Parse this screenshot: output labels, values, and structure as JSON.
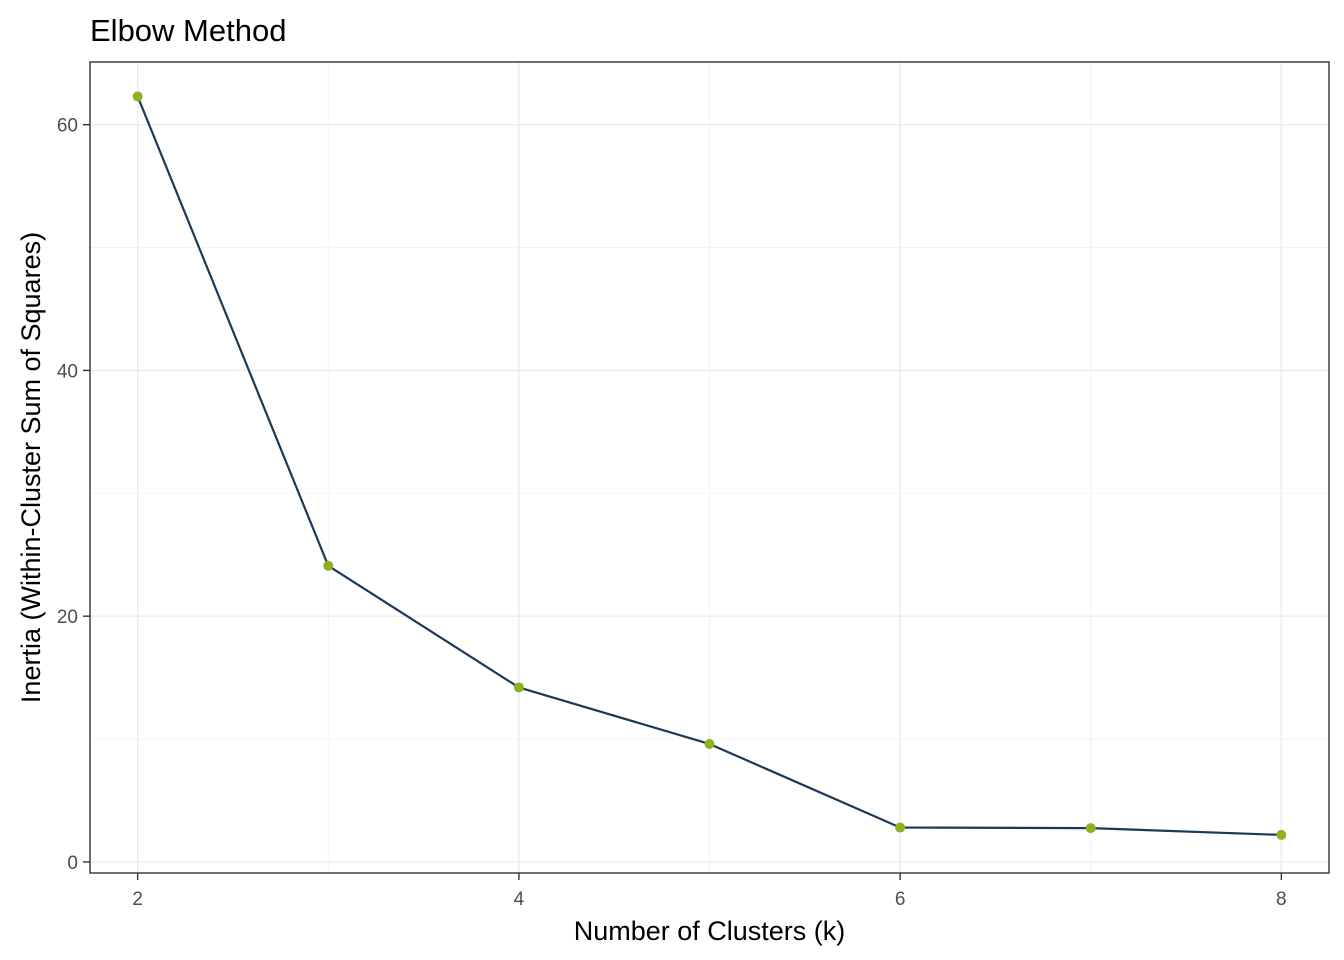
{
  "chart_data": {
    "type": "line",
    "title": "Elbow Method",
    "xlabel": "Number of Clusters (k)",
    "ylabel": "Inertia (Within-Cluster Sum of Squares)",
    "x": [
      2,
      3,
      4,
      5,
      6,
      7,
      8
    ],
    "series": [
      {
        "values": [
          62.3,
          24.1,
          14.2,
          9.6,
          2.8,
          2.75,
          2.2
        ]
      }
    ],
    "xlim": [
      1.75,
      8.25
    ],
    "ylim": [
      -0.9,
      65.1
    ],
    "xticks": [
      2,
      4,
      6,
      8
    ],
    "yticks": [
      0,
      20,
      40,
      60
    ],
    "xtick_labels": [
      "2",
      "4",
      "6",
      "8"
    ],
    "ytick_labels": [
      "0",
      "20",
      "40",
      "60"
    ],
    "grid": true,
    "line_color": "#1b3a57",
    "point_color": "#8cb21e"
  }
}
